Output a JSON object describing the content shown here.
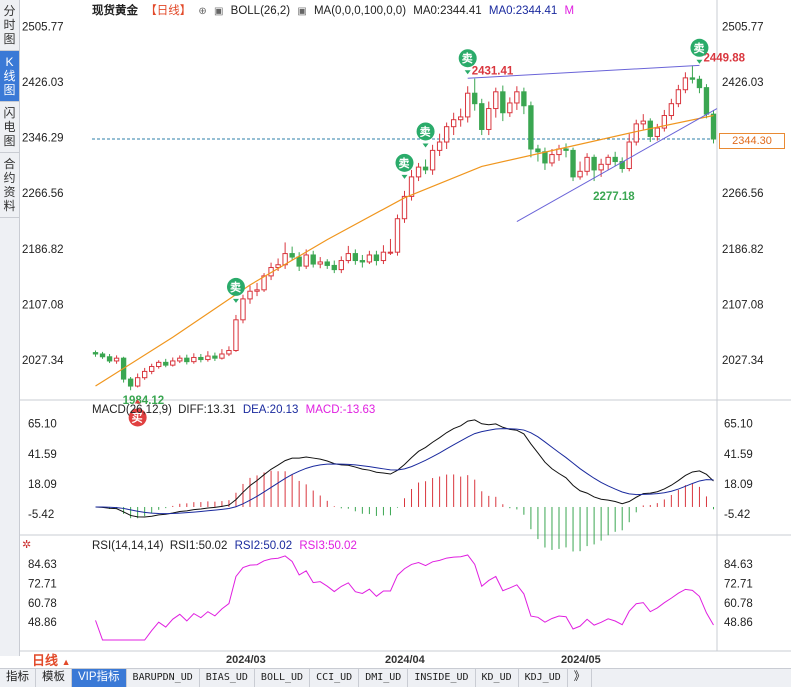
{
  "sidebar": {
    "tabs": [
      {
        "label": "分时图",
        "active": false
      },
      {
        "label": "K线图",
        "active": true
      },
      {
        "label": "闪电图",
        "active": false
      },
      {
        "label": "合约资料",
        "active": false
      }
    ]
  },
  "header": {
    "symbol": "现货黄金",
    "period_bracket": "【日线】",
    "boll": "BOLL(26,2)",
    "ma": "MA(0,0,0,100,0,0)",
    "ma0_a": "MA0:2344.41",
    "ma0_b": "MA0:2344.41",
    "m_mark": "M"
  },
  "price_tag": "2344.30",
  "colors": {
    "up": "#d9363e",
    "down": "#3aa651",
    "ma_line": "#f0961e",
    "macd_diff": "#111111",
    "macd_dea": "#1a2a9e",
    "rsi": "#e020e0",
    "trendline": "#6a64d8",
    "sell_badge": "#2aab6a",
    "buy_badge": "#e04040"
  },
  "macd": {
    "name": "MACD(26,12,9)",
    "diff": "DIFF:13.31",
    "dea": "DEA:20.13",
    "macd": "MACD:-13.63",
    "ticks": [
      "65.10",
      "41.59",
      "18.09",
      "-5.42"
    ]
  },
  "rsi": {
    "name": "RSI(14,14,14)",
    "rsi1": "RSI1:50.02",
    "rsi2": "RSI2:50.02",
    "rsi3": "RSI3:50.02",
    "ticks": [
      "84.63",
      "72.71",
      "60.78",
      "48.86"
    ]
  },
  "period_label": "日线",
  "x_labels": [
    "2024/03",
    "2024/04",
    "2024/05"
  ],
  "bottom_tabs": [
    {
      "label": "指标",
      "cn": true,
      "active": false
    },
    {
      "label": "模板",
      "cn": true,
      "active": false
    },
    {
      "label": "VIP指标",
      "cn": true,
      "active": true
    },
    {
      "label": "BARUPDN_UD",
      "cn": false,
      "active": false
    },
    {
      "label": "BIAS_UD",
      "cn": false,
      "active": false
    },
    {
      "label": "BOLL_UD",
      "cn": false,
      "active": false
    },
    {
      "label": "CCI_UD",
      "cn": false,
      "active": false
    },
    {
      "label": "DMI_UD",
      "cn": false,
      "active": false
    },
    {
      "label": "INSIDE_UD",
      "cn": false,
      "active": false
    },
    {
      "label": "KD_UD",
      "cn": false,
      "active": false
    },
    {
      "label": "KDJ_UD",
      "cn": false,
      "active": false
    },
    {
      "label": "》",
      "cn": true,
      "active": false
    }
  ],
  "chart_data": {
    "type": "candlestick",
    "y_ticks": [
      2505.77,
      2426.03,
      2346.29,
      2266.56,
      2186.82,
      2107.08,
      2027.34
    ],
    "ylim": [
      1970,
      2515
    ],
    "current_price_line": 2344.3,
    "annotations": [
      {
        "label": "2431.41",
        "value": 2431.41,
        "kind": "high"
      },
      {
        "label": "2449.88",
        "value": 2449.88,
        "kind": "high"
      },
      {
        "label": "2277.18",
        "value": 2277.18,
        "kind": "low"
      },
      {
        "label": "1984.12",
        "value": 1984.12,
        "kind": "low"
      }
    ],
    "signals": [
      {
        "label": "卖",
        "index": 20
      },
      {
        "label": "卖",
        "index": 44
      },
      {
        "label": "卖",
        "index": 47
      },
      {
        "label": "卖",
        "index": 53
      },
      {
        "label": "卖",
        "index": 86
      },
      {
        "label": "买",
        "index": 6
      }
    ],
    "candles": [
      [
        2038,
        2036,
        2041,
        2032
      ],
      [
        2036,
        2032,
        2039,
        2029
      ],
      [
        2032,
        2026,
        2036,
        2023
      ],
      [
        2026,
        2030,
        2034,
        2022
      ],
      [
        2030,
        2000,
        2032,
        1995
      ],
      [
        2000,
        1990,
        2003,
        1984
      ],
      [
        1990,
        2002,
        2008,
        1988
      ],
      [
        2002,
        2011,
        2016,
        1999
      ],
      [
        2011,
        2018,
        2022,
        2007
      ],
      [
        2018,
        2024,
        2027,
        2015
      ],
      [
        2024,
        2020,
        2029,
        2017
      ],
      [
        2020,
        2026,
        2031,
        2018
      ],
      [
        2026,
        2030,
        2034,
        2023
      ],
      [
        2030,
        2025,
        2035,
        2021
      ],
      [
        2025,
        2031,
        2037,
        2022
      ],
      [
        2031,
        2028,
        2036,
        2024
      ],
      [
        2028,
        2033,
        2040,
        2025
      ],
      [
        2033,
        2030,
        2038,
        2026
      ],
      [
        2030,
        2036,
        2043,
        2028
      ],
      [
        2036,
        2041,
        2047,
        2033
      ],
      [
        2041,
        2085,
        2092,
        2039
      ],
      [
        2085,
        2115,
        2121,
        2080
      ],
      [
        2115,
        2126,
        2134,
        2108
      ],
      [
        2126,
        2128,
        2138,
        2119
      ],
      [
        2128,
        2148,
        2152,
        2125
      ],
      [
        2148,
        2160,
        2167,
        2142
      ],
      [
        2160,
        2164,
        2173,
        2155
      ],
      [
        2164,
        2180,
        2196,
        2158
      ],
      [
        2180,
        2175,
        2190,
        2170
      ],
      [
        2175,
        2162,
        2182,
        2155
      ],
      [
        2162,
        2178,
        2186,
        2158
      ],
      [
        2178,
        2165,
        2184,
        2160
      ],
      [
        2165,
        2168,
        2175,
        2159
      ],
      [
        2168,
        2163,
        2172,
        2158
      ],
      [
        2163,
        2157,
        2170,
        2152
      ],
      [
        2157,
        2170,
        2176,
        2152
      ],
      [
        2170,
        2180,
        2191,
        2166
      ],
      [
        2180,
        2170,
        2186,
        2164
      ],
      [
        2170,
        2168,
        2178,
        2160
      ],
      [
        2168,
        2178,
        2184,
        2165
      ],
      [
        2178,
        2170,
        2184,
        2163
      ],
      [
        2170,
        2182,
        2192,
        2165
      ],
      [
        2182,
        2182,
        2201,
        2178
      ],
      [
        2182,
        2230,
        2236,
        2177
      ],
      [
        2230,
        2262,
        2270,
        2224
      ],
      [
        2262,
        2290,
        2300,
        2256
      ],
      [
        2290,
        2304,
        2310,
        2284
      ],
      [
        2304,
        2300,
        2315,
        2294
      ],
      [
        2300,
        2328,
        2336,
        2293
      ],
      [
        2328,
        2340,
        2352,
        2320
      ],
      [
        2340,
        2362,
        2368,
        2330
      ],
      [
        2362,
        2372,
        2382,
        2350
      ],
      [
        2372,
        2376,
        2388,
        2362
      ],
      [
        2376,
        2410,
        2420,
        2368
      ],
      [
        2410,
        2395,
        2431,
        2385
      ],
      [
        2395,
        2358,
        2402,
        2350
      ],
      [
        2358,
        2388,
        2398,
        2350
      ],
      [
        2388,
        2412,
        2418,
        2375
      ],
      [
        2412,
        2382,
        2421,
        2370
      ],
      [
        2382,
        2396,
        2404,
        2376
      ],
      [
        2396,
        2412,
        2420,
        2386
      ],
      [
        2412,
        2392,
        2418,
        2380
      ],
      [
        2392,
        2330,
        2398,
        2318
      ],
      [
        2330,
        2326,
        2336,
        2312
      ],
      [
        2326,
        2310,
        2332,
        2300
      ],
      [
        2310,
        2322,
        2330,
        2305
      ],
      [
        2322,
        2330,
        2336,
        2313
      ],
      [
        2330,
        2328,
        2338,
        2318
      ],
      [
        2328,
        2290,
        2332,
        2284
      ],
      [
        2290,
        2298,
        2312,
        2286
      ],
      [
        2298,
        2318,
        2324,
        2292
      ],
      [
        2318,
        2300,
        2322,
        2284
      ],
      [
        2300,
        2308,
        2316,
        2290
      ],
      [
        2308,
        2318,
        2322,
        2300
      ],
      [
        2318,
        2312,
        2326,
        2305
      ],
      [
        2312,
        2302,
        2318,
        2296
      ],
      [
        2302,
        2340,
        2352,
        2298
      ],
      [
        2340,
        2366,
        2372,
        2335
      ],
      [
        2366,
        2370,
        2380,
        2358
      ],
      [
        2370,
        2348,
        2374,
        2340
      ],
      [
        2348,
        2360,
        2366,
        2342
      ],
      [
        2360,
        2378,
        2386,
        2355
      ],
      [
        2378,
        2395,
        2402,
        2372
      ],
      [
        2395,
        2415,
        2422,
        2390
      ],
      [
        2415,
        2432,
        2440,
        2410
      ],
      [
        2432,
        2430,
        2449.88,
        2424
      ],
      [
        2430,
        2418,
        2435,
        2410
      ],
      [
        2418,
        2380,
        2423,
        2374
      ],
      [
        2380,
        2344.3,
        2386,
        2338
      ]
    ],
    "ma_line_values": [
      1990,
      2060,
      2135,
      2200,
      2260,
      2305,
      2330,
      2355,
      2378
    ]
  }
}
